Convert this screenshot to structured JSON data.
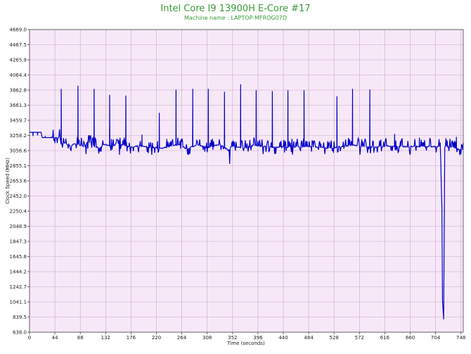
{
  "chart_data": {
    "type": "line",
    "title": "Intel Core I9 13900H E-Core #17",
    "subtitle": "Machine name : LAPTOP-MFROG07D",
    "xlabel": "Time (seconds)",
    "ylabel": "Clock Speed (MHz)",
    "xlim": [
      0,
      752
    ],
    "ylim": [
      638.0,
      4669.0
    ],
    "x_ticks": [
      "0",
      "44",
      "88",
      "132",
      "176",
      "220",
      "264",
      "308",
      "352",
      "396",
      "440",
      "484",
      "528",
      "572",
      "616",
      "660",
      "704",
      "748"
    ],
    "y_ticks": [
      "4669.0",
      "4467.5",
      "4265.9",
      "4064.4",
      "3862.8",
      "3661.3",
      "3459.7",
      "3258.2",
      "3056.6",
      "2855.1",
      "2653.6",
      "2452.0",
      "2250.4",
      "2048.9",
      "1847.3",
      "1645.8",
      "1444.2",
      "1242.7",
      "1041.1",
      "839.5",
      "638.0"
    ],
    "grid": true,
    "colors": {
      "plot_bg": "#f7e8f7",
      "grid": "#c9a8c9",
      "line": "#0000cc",
      "title": "#3a9a3a"
    },
    "series": [
      {
        "baseline": 3110,
        "x": [
          0,
          20,
          22,
          50,
          52,
          55,
          60,
          72,
          78,
          95,
          100,
          120,
          130,
          145,
          150,
          178,
          190,
          230,
          260,
          272,
          290,
          310,
          330,
          345,
          350,
          372,
          390,
          420,
          480,
          520,
          560,
          580,
          600,
          620,
          640,
          700,
          710,
          712,
          715,
          716,
          718,
          720,
          722,
          752
        ],
        "values": [
          3300,
          3300,
          3230,
          3230,
          3260,
          3140,
          3160,
          3120,
          3150,
          3110,
          3170,
          3090,
          3140,
          3110,
          3150,
          3100,
          3120,
          3090,
          3140,
          3080,
          3130,
          3100,
          3140,
          3060,
          3110,
          3090,
          3130,
          3100,
          3110,
          3090,
          3130,
          3110,
          3100,
          3120,
          3110,
          3110,
          3110,
          3100,
          2300,
          1050,
          810,
          3100,
          3120,
          3060
        ],
        "spikes": [
          {
            "x": 6,
            "y": 3250
          },
          {
            "x": 14,
            "y": 3260
          },
          {
            "x": 27,
            "y": 3250
          },
          {
            "x": 38,
            "y": 3240
          },
          {
            "x": 55,
            "y": 3880
          },
          {
            "x": 84,
            "y": 3920
          },
          {
            "x": 112,
            "y": 3880
          },
          {
            "x": 139,
            "y": 3800
          },
          {
            "x": 167,
            "y": 3790
          },
          {
            "x": 195,
            "y": 3270
          },
          {
            "x": 225,
            "y": 3560
          },
          {
            "x": 254,
            "y": 3870
          },
          {
            "x": 283,
            "y": 3880
          },
          {
            "x": 310,
            "y": 3880
          },
          {
            "x": 338,
            "y": 3840
          },
          {
            "x": 366,
            "y": 3940
          },
          {
            "x": 393,
            "y": 3860
          },
          {
            "x": 421,
            "y": 3850
          },
          {
            "x": 448,
            "y": 3860
          },
          {
            "x": 476,
            "y": 3860
          },
          {
            "x": 533,
            "y": 3780
          },
          {
            "x": 560,
            "y": 3880
          },
          {
            "x": 590,
            "y": 3870
          },
          {
            "x": 633,
            "y": 3280
          },
          {
            "x": 676,
            "y": 3230
          },
          {
            "x": 740,
            "y": 3240
          }
        ],
        "dips": [
          {
            "x": 98,
            "y": 3010
          },
          {
            "x": 156,
            "y": 3000
          },
          {
            "x": 212,
            "y": 3000
          },
          {
            "x": 276,
            "y": 3000
          },
          {
            "x": 347,
            "y": 2880
          },
          {
            "x": 405,
            "y": 3010
          },
          {
            "x": 456,
            "y": 3000
          },
          {
            "x": 512,
            "y": 3010
          },
          {
            "x": 573,
            "y": 3000
          },
          {
            "x": 660,
            "y": 3000
          },
          {
            "x": 748,
            "y": 3010
          }
        ]
      }
    ]
  }
}
